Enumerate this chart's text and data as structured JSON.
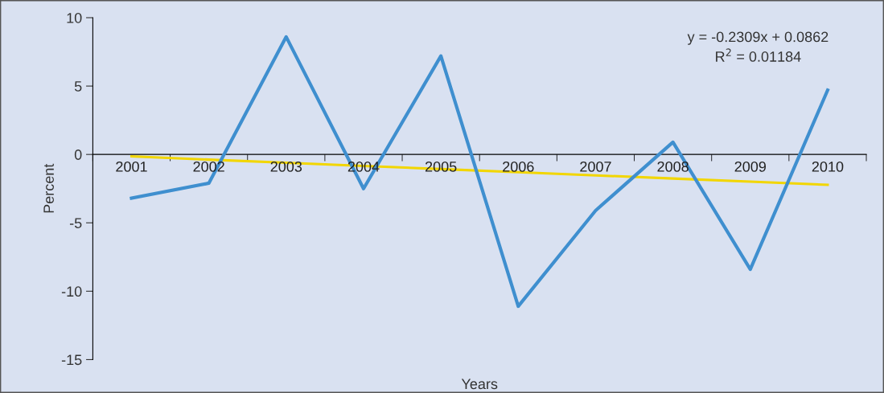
{
  "chart_data": {
    "type": "line",
    "xlabel": "Years",
    "ylabel": "Percent",
    "categories": [
      "2001",
      "2002",
      "2003",
      "2004",
      "2005",
      "2006",
      "2007",
      "2008",
      "2009",
      "2010"
    ],
    "series": [
      {
        "color": "#3f8fcf",
        "values": [
          -3.2,
          -2.1,
          8.6,
          -2.5,
          7.2,
          -11.1,
          -4.1,
          0.9,
          -8.4,
          4.7
        ]
      },
      {
        "type": "line",
        "color": "#f2d600",
        "values": [
          -0.14,
          -0.38,
          -0.61,
          -0.84,
          -1.07,
          -1.3,
          -1.53,
          -1.76,
          -1.99,
          -2.22
        ]
      }
    ],
    "ylim": [
      -15,
      10
    ],
    "yticks": [
      -15,
      -10,
      -5,
      0,
      5,
      10
    ],
    "grid": false,
    "annotations": [
      "y = -0.2309x + 0.0862\nR$^{2}$ = 0.01184"
    ]
  }
}
